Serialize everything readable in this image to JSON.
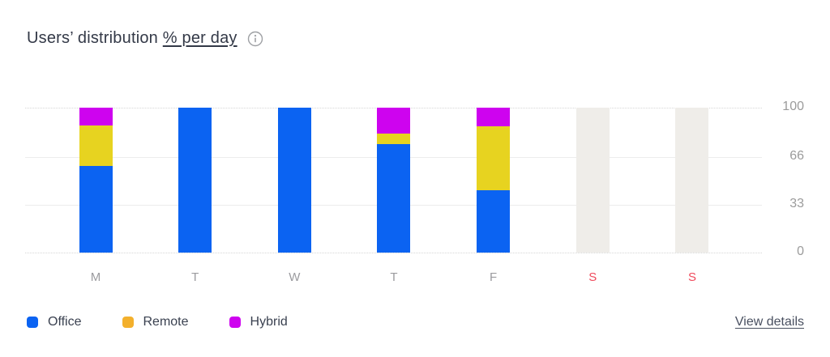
{
  "header": {
    "title_prefix": "Users’ distribution",
    "title_underlined": "% per day",
    "info_icon": "info-icon"
  },
  "chart_data": {
    "type": "bar",
    "stacked": true,
    "title": "Users’ distribution % per day",
    "unit": "%",
    "ylim": [
      0,
      100
    ],
    "yticks": [
      0,
      33,
      66,
      100
    ],
    "grid": "horizontal",
    "legend_position": "bottom-left",
    "categories": [
      {
        "label": "M",
        "weekend": false
      },
      {
        "label": "T",
        "weekend": false
      },
      {
        "label": "W",
        "weekend": false
      },
      {
        "label": "T",
        "weekend": false
      },
      {
        "label": "F",
        "weekend": false
      },
      {
        "label": "S",
        "weekend": true
      },
      {
        "label": "S",
        "weekend": true
      }
    ],
    "series": [
      {
        "name": "Office",
        "color": "#0B63F2",
        "legend_color": "#0B63F2",
        "values": [
          60,
          100,
          100,
          75,
          43,
          null,
          null
        ]
      },
      {
        "name": "Remote",
        "color": "#E7D320",
        "legend_color": "#F3B02C",
        "values": [
          28,
          0,
          0,
          7,
          44,
          null,
          null
        ]
      },
      {
        "name": "Hybrid",
        "color": "#CE03EF",
        "legend_color": "#CE03EF",
        "values": [
          12,
          0,
          0,
          18,
          13,
          null,
          null
        ]
      }
    ],
    "weekend_bar_color": "#EFEDE9",
    "weekend_label_color": "#F04A5C",
    "weekday_label_color": "#9B9B9F"
  },
  "footer": {
    "view_details": "View details"
  }
}
